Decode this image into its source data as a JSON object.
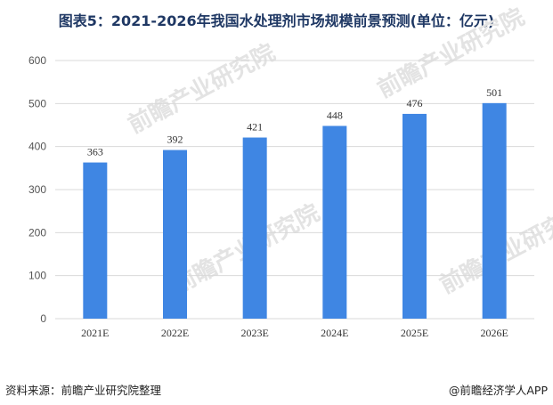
{
  "header": {
    "title": "图表5：2021-2026年我国水处理剂市场规模前景预测(单位：亿元)"
  },
  "footer": {
    "source": "资料来源：前瞻产业研究院整理",
    "brand": "@前瞻经济学人APP"
  },
  "watermark": {
    "text": "前瞻产业研究院"
  },
  "colors": {
    "bar": "#3f86e3",
    "grid": "#d9d9d9",
    "title": "#1f3864"
  },
  "chart_data": {
    "type": "bar",
    "title": "图表5：2021-2026年我国水处理剂市场规模前景预测(单位：亿元)",
    "categories": [
      "2021E",
      "2022E",
      "2023E",
      "2024E",
      "2025E",
      "2026E"
    ],
    "values": [
      363,
      392,
      421,
      448,
      476,
      501
    ],
    "ylim": [
      0,
      600
    ],
    "yticks": [
      0,
      100,
      200,
      300,
      400,
      500,
      600
    ],
    "grid": true,
    "xlabel": "",
    "ylabel": ""
  }
}
